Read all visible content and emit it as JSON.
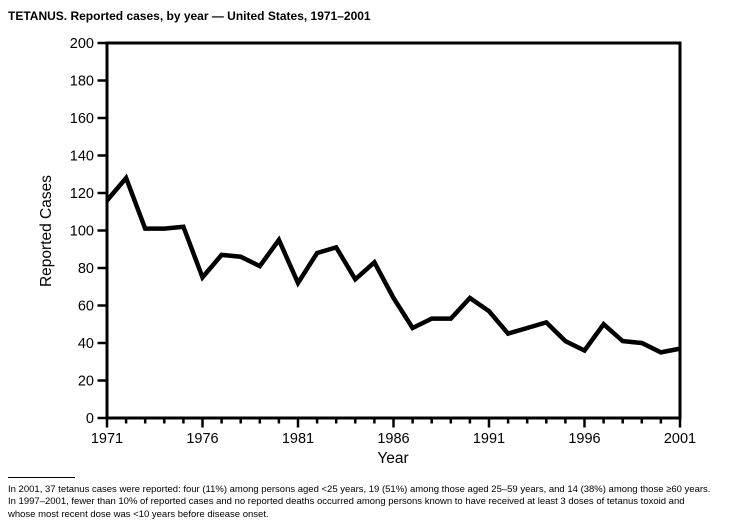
{
  "title": "TETANUS. Reported cases, by year — United States, 1971–2001",
  "chart_data": {
    "type": "line",
    "title": "TETANUS. Reported cases, by year — United States, 1971–2001",
    "xlabel": "Year",
    "ylabel": "Reported Cases",
    "x": [
      1971,
      1972,
      1973,
      1974,
      1975,
      1976,
      1977,
      1978,
      1979,
      1980,
      1981,
      1982,
      1983,
      1984,
      1985,
      1986,
      1987,
      1988,
      1989,
      1990,
      1991,
      1992,
      1993,
      1994,
      1995,
      1996,
      1997,
      1998,
      1999,
      2000,
      2001
    ],
    "series": [
      {
        "name": "Reported tetanus cases",
        "values": [
          116,
          128,
          101,
          101,
          102,
          75,
          87,
          86,
          81,
          95,
          72,
          88,
          91,
          74,
          83,
          64,
          48,
          53,
          53,
          64,
          57,
          45,
          48,
          51,
          41,
          36,
          50,
          41,
          40,
          35,
          37
        ]
      }
    ],
    "ylim": [
      0,
      200
    ],
    "y_ticks": [
      0,
      20,
      40,
      60,
      80,
      100,
      120,
      140,
      160,
      180,
      200
    ],
    "x_major_ticks": [
      1971,
      1976,
      1981,
      1986,
      1991,
      1996,
      2001
    ],
    "x_minor_tick_step": 1,
    "grid": false,
    "legend_position": "none",
    "line_color": "#000000",
    "axis_color": "#000000",
    "background_color": "#ffffff"
  },
  "footnote": {
    "lines": [
      "In 2001, 37 tetanus cases were reported: four (11%) among persons aged <25 years, 19 (51%) among those aged 25–59 years, and 14 (38%) among those ≥60 years.",
      "In 1997–2001, fewer than 10% of reported cases and no reported deaths occurred among persons known to have received at least 3 doses of tetanus toxoid and",
      "whose most recent dose was <10 years before disease onset."
    ]
  }
}
